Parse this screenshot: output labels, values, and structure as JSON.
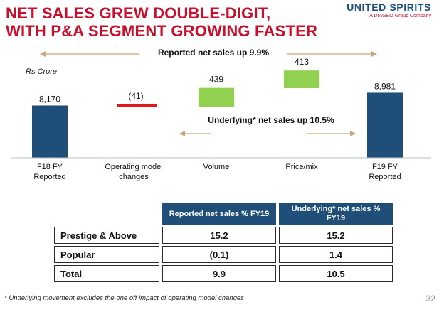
{
  "header": {
    "title_line1": "NET SALES GREW DOUBLE-DIGIT,",
    "title_line2": "WITH P&A SEGMENT GROWING FASTER",
    "brand_name": "UNITED SPIRITS",
    "brand_sub": "A DIAGEO Group Company"
  },
  "chart_data": {
    "type": "waterfall",
    "unit_label": "Rs Crore",
    "categories": [
      [
        "F18 FY",
        "Reported"
      ],
      [
        "Operating model",
        "changes"
      ],
      [
        "Volume"
      ],
      [
        "Price/mix"
      ],
      [
        "F19 FY",
        "Reported"
      ]
    ],
    "values": [
      8170,
      -41,
      439,
      413,
      8981
    ],
    "value_labels": [
      "8,170",
      "(41)",
      "439",
      "413",
      "8,981"
    ],
    "kinds": [
      "total",
      "delta",
      "delta",
      "delta",
      "total"
    ],
    "annotations": {
      "reported": "Reported net sales up 9.9%",
      "underlying": "Underlying* net sales up 10.5%"
    },
    "colors": {
      "total": "#1f4e79",
      "increase": "#92d050",
      "decrease": "#e0191b",
      "arrow": "#c9a57a"
    }
  },
  "table": {
    "columns": [
      "Reported net sales % FY19",
      "Underlying* net sales % FY19"
    ],
    "rows": [
      {
        "label": "Prestige & Above",
        "reported": "15.2",
        "underlying": "15.2"
      },
      {
        "label": "Popular",
        "reported": "(0.1)",
        "underlying": "1.4"
      },
      {
        "label": "Total",
        "reported": "9.9",
        "underlying": "10.5"
      }
    ]
  },
  "footer": {
    "footnote": "* Underlying movement excludes the one off impact of operating model changes",
    "page_number": "32"
  }
}
